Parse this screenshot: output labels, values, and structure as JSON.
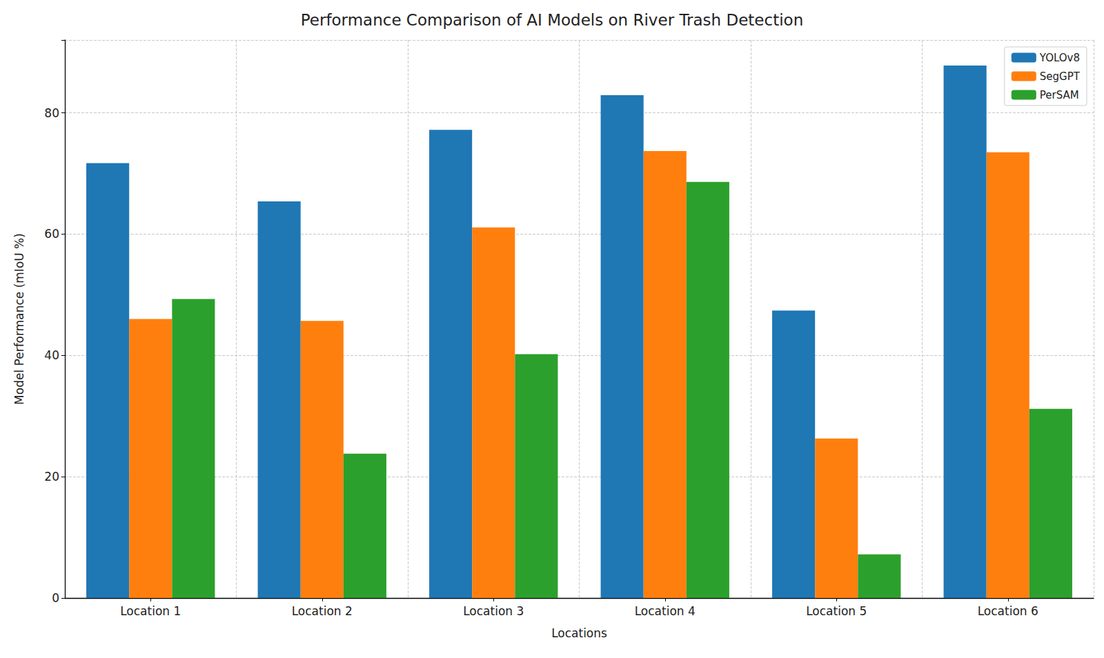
{
  "chart_data": {
    "type": "bar",
    "title": "Performance Comparison of AI Models on River Trash Detection",
    "x_label": "Locations",
    "y_label": "Model Performance (mIoU %)",
    "categories": [
      "Location 1",
      "Location 2",
      "Location 3",
      "Location 4",
      "Location 5",
      "Location 6"
    ],
    "series": [
      {
        "name": "YOLOv8",
        "color": "#1f77b4",
        "values": [
          71.7,
          65.4,
          77.2,
          82.9,
          47.4,
          87.8
        ]
      },
      {
        "name": "SegGPT",
        "color": "#ff7f0e",
        "values": [
          46.0,
          45.7,
          61.1,
          73.7,
          26.3,
          73.5
        ]
      },
      {
        "name": "PerSAM",
        "color": "#2ca02c",
        "values": [
          49.3,
          23.8,
          40.2,
          68.6,
          7.2,
          31.2
        ]
      }
    ],
    "ylim": [
      0,
      92
    ],
    "yticks": [
      0,
      20,
      40,
      60,
      80
    ],
    "grid": true,
    "legend": "upper right"
  }
}
